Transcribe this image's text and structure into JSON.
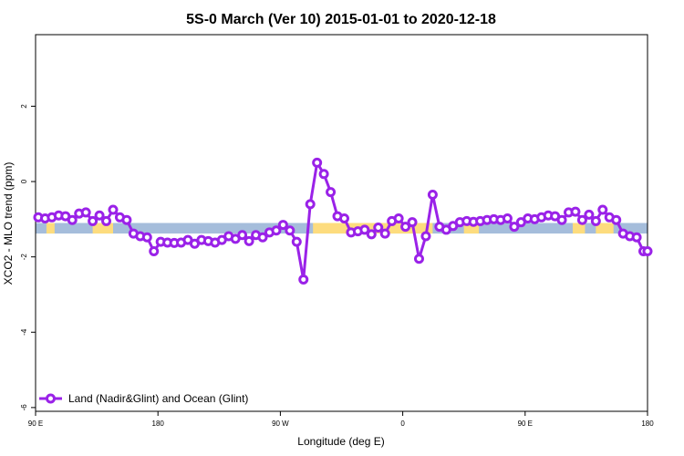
{
  "chart_data": {
    "type": "line",
    "title": "5S-0 March (Ver 10)   2015-01-01 to 2020-12-18",
    "xlabel": "Longitude (deg E)",
    "ylabel": "XCO2 - MLO trend (ppm)",
    "xlim": [
      90,
      540
    ],
    "ylim": [
      -6.1,
      3.9
    ],
    "x_ticks": [
      {
        "value": 90,
        "label": "90 E"
      },
      {
        "value": 180,
        "label": "180"
      },
      {
        "value": 270,
        "label": "90 W"
      },
      {
        "value": 360,
        "label": "0"
      },
      {
        "value": 450,
        "label": "90 E"
      },
      {
        "value": 540,
        "label": "180"
      }
    ],
    "y_ticks": [
      {
        "value": 2,
        "label": "2"
      },
      {
        "value": 0,
        "label": "0"
      },
      {
        "value": -2,
        "label": "-2"
      },
      {
        "value": -4,
        "label": "-4"
      },
      {
        "value": -6,
        "label": "-6"
      }
    ],
    "background_band": {
      "y_top": -1.1,
      "y_bottom": -1.38,
      "ocean_color": "#a5bddb",
      "land_color": "#fddc7e"
    },
    "land_segments": [
      [
        98,
        104
      ],
      [
        132,
        147
      ],
      [
        294,
        382
      ],
      [
        405,
        416
      ],
      [
        485,
        494
      ],
      [
        502,
        515
      ]
    ],
    "series": [
      {
        "name": "Land (Nadir&Glint) and Ocean (Glint)",
        "color": "#9a22e8",
        "x": [
          92,
          97,
          102,
          107,
          112,
          117,
          122,
          127,
          132,
          137,
          142,
          147,
          152,
          157,
          162,
          167,
          172,
          177,
          182,
          187,
          192,
          197,
          202,
          207,
          212,
          217,
          222,
          227,
          232,
          237,
          242,
          247,
          252,
          257,
          262,
          267,
          272,
          277,
          282,
          287,
          292,
          297,
          302,
          307,
          312,
          317,
          322,
          327,
          332,
          337,
          342,
          347,
          352,
          357,
          362,
          367,
          372,
          377,
          382,
          387,
          392,
          397,
          402,
          407,
          412,
          417,
          422,
          427,
          432,
          437,
          442,
          447,
          452,
          457,
          462,
          467,
          472,
          477,
          482,
          487,
          492,
          497,
          502,
          507,
          512,
          517,
          522,
          527,
          532,
          537,
          540
        ],
        "y": [
          -0.95,
          -0.98,
          -0.95,
          -0.9,
          -0.92,
          -1.02,
          -0.85,
          -0.82,
          -1.05,
          -0.9,
          -1.05,
          -0.75,
          -0.95,
          -1.02,
          -1.38,
          -1.45,
          -1.48,
          -1.85,
          -1.6,
          -1.62,
          -1.63,
          -1.62,
          -1.55,
          -1.65,
          -1.55,
          -1.58,
          -1.62,
          -1.55,
          -1.45,
          -1.52,
          -1.42,
          -1.58,
          -1.42,
          -1.48,
          -1.35,
          -1.3,
          -1.15,
          -1.3,
          -1.6,
          -2.6,
          -0.6,
          0.5,
          0.2,
          -0.28,
          -0.92,
          -0.98,
          -1.35,
          -1.32,
          -1.28,
          -1.4,
          -1.22,
          -1.38,
          -1.05,
          -0.98,
          -1.2,
          -1.08,
          -2.05,
          -1.45,
          -0.35,
          -1.2,
          -1.28,
          -1.18,
          -1.08,
          -1.05,
          -1.07,
          -1.05,
          -1.02,
          -1.0,
          -1.02,
          -0.98,
          -1.2,
          -1.08,
          -0.98,
          -1.0,
          -0.95,
          -0.9,
          -0.92,
          -1.02,
          -0.82,
          -0.8,
          -1.02,
          -0.88,
          -1.05,
          -0.75,
          -0.95,
          -1.02,
          -1.38,
          -1.45,
          -1.48,
          -1.85,
          -1.85
        ]
      }
    ],
    "legend": {
      "position": "bottom-left",
      "label": "Land (Nadir&Glint) and Ocean (Glint)"
    }
  }
}
